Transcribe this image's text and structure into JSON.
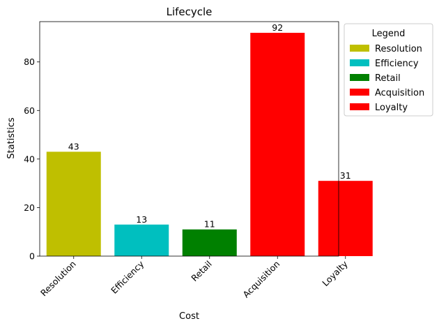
{
  "chart_data": {
    "type": "bar",
    "title": "Lifecycle",
    "xlabel": "Cost",
    "ylabel": "Statistics",
    "categories": [
      "Resolution",
      "Efficiency",
      "Retail",
      "Acquisition",
      "Loyalty"
    ],
    "values": [
      43,
      13,
      11,
      92,
      31
    ],
    "colors": [
      "#bfbf00",
      "#00bfbf",
      "#008000",
      "#ff0000",
      "#ff0000"
    ],
    "ylim": [
      0,
      96.6
    ],
    "yticks": [
      0,
      20,
      40,
      60,
      80
    ],
    "grid": false,
    "legend": {
      "title": "Legend",
      "placement": "outside-top-right",
      "entries": [
        "Resolution",
        "Efficiency",
        "Retail",
        "Acquisition",
        "Loyalty"
      ]
    }
  }
}
